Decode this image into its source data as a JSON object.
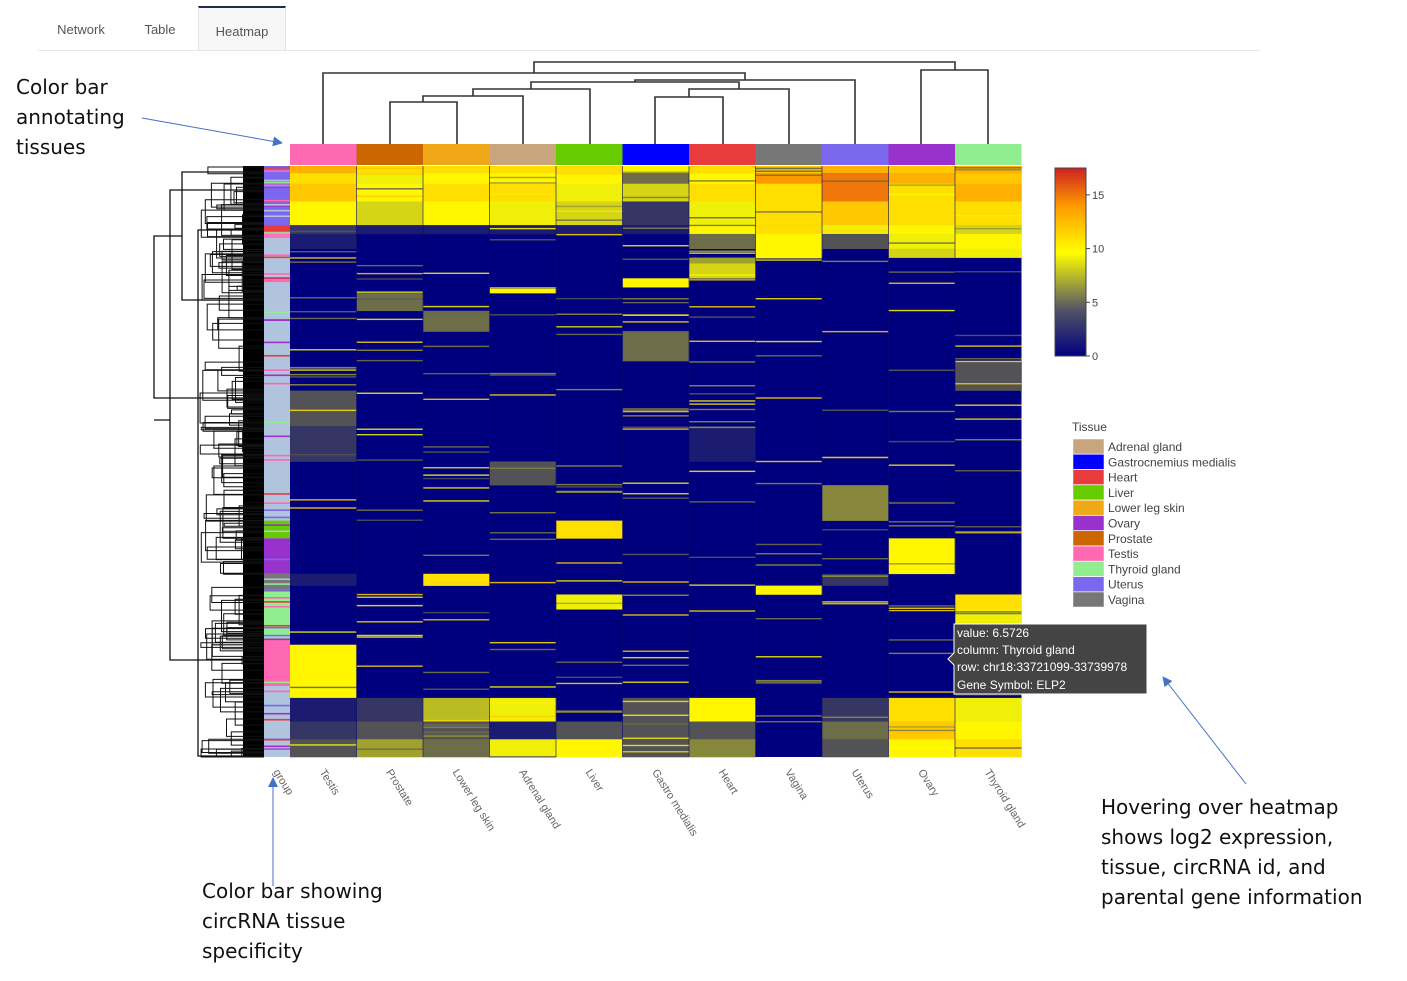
{
  "tabs": [
    {
      "label": "Network",
      "active": false
    },
    {
      "label": "Table",
      "active": false
    },
    {
      "label": "Heatmap",
      "active": true
    }
  ],
  "annotations": {
    "tissue_colorbar": "Color bar\nannotating\ntissues",
    "specificity_colorbar": "Color bar showing\ncircRNA tissue\nspecificity",
    "hover": "Hovering over heatmap\nshows log2 expression,\ntissue, circRNA id, and\nparental gene information"
  },
  "chart_data": {
    "type": "heatmap",
    "columns": [
      "group",
      "Testis",
      "Prostate",
      "Lower leg skin",
      "Adrenal gland",
      "Liver",
      "Gastro medialis",
      "Heart",
      "Vagina",
      "Uterus",
      "Ovary",
      "Thyroid gland"
    ],
    "column_colors": [
      "#ff69b4",
      "#cc6600",
      "#f0a818",
      "#c8a57c",
      "#66cc00",
      "#0000ff",
      "#e83c3c",
      "#777777",
      "#7b68ee",
      "#9932cc",
      "#90ee90"
    ],
    "colorscale": {
      "min": 0,
      "max": 17.5,
      "ticks": [
        0,
        5,
        10,
        15
      ],
      "stops": [
        "#00007f",
        "#777744",
        "#ffff00",
        "#ff9900",
        "#cc2222"
      ]
    },
    "legend": {
      "title": "Tissue",
      "position": "right",
      "items": [
        {
          "label": "Adrenal gland",
          "color": "#c8a57c"
        },
        {
          "label": "Gastrocnemius medialis",
          "color": "#0000ff"
        },
        {
          "label": "Heart",
          "color": "#e83c3c"
        },
        {
          "label": "Liver",
          "color": "#66cc00"
        },
        {
          "label": "Lower leg skin",
          "color": "#f0a818"
        },
        {
          "label": "Ovary",
          "color": "#9932cc"
        },
        {
          "label": "Prostate",
          "color": "#cc6600"
        },
        {
          "label": "Testis",
          "color": "#ff69b4"
        },
        {
          "label": "Thyroid gland",
          "color": "#90ee90"
        },
        {
          "label": "Uterus",
          "color": "#7b68ee"
        },
        {
          "label": "Vagina",
          "color": "#777777"
        }
      ]
    },
    "tooltip": {
      "value": "value: 6.5726",
      "column": "column: Thyroid gland",
      "row": "row: chr18:33721099-33739978",
      "gene": "Gene Symbol: ELP2"
    },
    "bands": [
      {
        "start": 0.0,
        "end": 0.012,
        "values": [
          13,
          11,
          11,
          11,
          11,
          10,
          11,
          12,
          13,
          12,
          13
        ]
      },
      {
        "start": 0.012,
        "end": 0.03,
        "values": [
          11,
          9,
          10,
          10,
          10,
          4,
          10,
          14,
          15,
          13,
          12
        ]
      },
      {
        "start": 0.03,
        "end": 0.06,
        "values": [
          12,
          10,
          11,
          11,
          9,
          8,
          11,
          11,
          15,
          11,
          13
        ]
      },
      {
        "start": 0.06,
        "end": 0.1,
        "values": [
          10,
          8,
          10,
          9,
          8,
          2,
          9,
          11,
          12,
          11,
          11
        ]
      },
      {
        "start": 0.1,
        "end": 0.115,
        "values": [
          2,
          1,
          1,
          1,
          1,
          1,
          10,
          11,
          9,
          10,
          8
        ]
      },
      {
        "start": 0.115,
        "end": 0.14,
        "values": [
          1,
          0,
          0,
          0,
          0,
          0,
          4,
          10,
          3,
          9,
          10
        ]
      },
      {
        "start": 0.14,
        "end": 0.155,
        "values": [
          0,
          0,
          0,
          0,
          0,
          0,
          0,
          10,
          0,
          8,
          9
        ]
      },
      {
        "start": 0.155,
        "end": 0.165,
        "values": [
          0,
          0,
          0,
          0,
          0,
          0,
          6,
          0,
          0,
          0,
          0
        ]
      },
      {
        "start": 0.165,
        "end": 0.19,
        "values": [
          0,
          0,
          0,
          0,
          0,
          0,
          8,
          0,
          0,
          0,
          0
        ]
      },
      {
        "start": 0.19,
        "end": 0.205,
        "values": [
          0,
          0,
          0,
          0,
          0,
          10,
          0,
          0,
          0,
          0,
          0
        ]
      },
      {
        "start": 0.205,
        "end": 0.215,
        "values": [
          0,
          0,
          0,
          10,
          0,
          0,
          0,
          0,
          0,
          0,
          0
        ]
      },
      {
        "start": 0.215,
        "end": 0.245,
        "values": [
          0,
          4,
          0,
          0,
          0,
          0,
          0,
          0,
          0,
          0,
          0
        ]
      },
      {
        "start": 0.245,
        "end": 0.28,
        "values": [
          0,
          0,
          4,
          0,
          0,
          0,
          0,
          0,
          0,
          0,
          0
        ]
      },
      {
        "start": 0.28,
        "end": 0.33,
        "values": [
          0,
          0,
          0,
          0,
          0,
          4,
          0,
          0,
          0,
          0,
          0
        ]
      },
      {
        "start": 0.33,
        "end": 0.38,
        "values": [
          0,
          0,
          0,
          0,
          0,
          0,
          0,
          0,
          0,
          0,
          3
        ]
      },
      {
        "start": 0.38,
        "end": 0.44,
        "values": [
          3,
          0,
          0,
          0,
          0,
          0,
          0,
          0,
          0,
          0,
          0
        ]
      },
      {
        "start": 0.44,
        "end": 0.5,
        "values": [
          2,
          0,
          0,
          0,
          0,
          0,
          1,
          0,
          0,
          0,
          0
        ]
      },
      {
        "start": 0.5,
        "end": 0.54,
        "values": [
          0,
          0,
          0,
          3,
          0,
          0,
          0,
          0,
          0,
          0,
          0
        ]
      },
      {
        "start": 0.54,
        "end": 0.6,
        "values": [
          0,
          0,
          0,
          0,
          0,
          0,
          0,
          0,
          5,
          0,
          0
        ]
      },
      {
        "start": 0.6,
        "end": 0.63,
        "values": [
          0,
          0,
          0,
          0,
          11,
          0,
          0,
          0,
          0,
          0,
          0
        ]
      },
      {
        "start": 0.63,
        "end": 0.69,
        "values": [
          0,
          0,
          0,
          0,
          0,
          0,
          0,
          0,
          0,
          10,
          0
        ]
      },
      {
        "start": 0.69,
        "end": 0.71,
        "values": [
          1,
          0,
          11,
          0,
          0,
          0,
          0,
          0,
          2,
          0,
          0
        ]
      },
      {
        "start": 0.71,
        "end": 0.725,
        "values": [
          0,
          0,
          0,
          0,
          0,
          0,
          0,
          10,
          0,
          0,
          0
        ]
      },
      {
        "start": 0.725,
        "end": 0.75,
        "values": [
          0,
          0,
          0,
          0,
          9,
          0,
          0,
          0,
          0,
          0,
          11
        ]
      },
      {
        "start": 0.75,
        "end": 0.81,
        "values": [
          0,
          0,
          0,
          0,
          0,
          0,
          0,
          0,
          0,
          0,
          9
        ]
      },
      {
        "start": 0.81,
        "end": 0.9,
        "values": [
          10,
          0,
          0,
          0,
          0,
          0,
          0,
          0,
          0,
          0,
          0
        ]
      },
      {
        "start": 0.9,
        "end": 0.94,
        "values": [
          1,
          2,
          7,
          9,
          0,
          3,
          10,
          0,
          2,
          11,
          9
        ]
      },
      {
        "start": 0.94,
        "end": 0.97,
        "values": [
          2,
          3,
          3,
          1,
          3,
          3,
          3,
          0,
          4,
          12,
          10
        ]
      },
      {
        "start": 0.97,
        "end": 1.0,
        "values": [
          3,
          6,
          4,
          9,
          10,
          3,
          5,
          0,
          3,
          10,
          11
        ]
      }
    ],
    "group_colors": [
      {
        "start": 0.0,
        "end": 0.1,
        "color": "#7b68ee"
      },
      {
        "start": 0.1,
        "end": 0.115,
        "color": "#e83c3c"
      },
      {
        "start": 0.115,
        "end": 0.6,
        "color": "#b0c4de"
      },
      {
        "start": 0.6,
        "end": 0.63,
        "color": "#66cc00"
      },
      {
        "start": 0.63,
        "end": 0.69,
        "color": "#9932cc"
      },
      {
        "start": 0.69,
        "end": 0.72,
        "color": "#777777"
      },
      {
        "start": 0.72,
        "end": 0.8,
        "color": "#90ee90"
      },
      {
        "start": 0.8,
        "end": 0.88,
        "color": "#ff69b4"
      },
      {
        "start": 0.88,
        "end": 1.0,
        "color": "#b0c4de"
      }
    ]
  }
}
